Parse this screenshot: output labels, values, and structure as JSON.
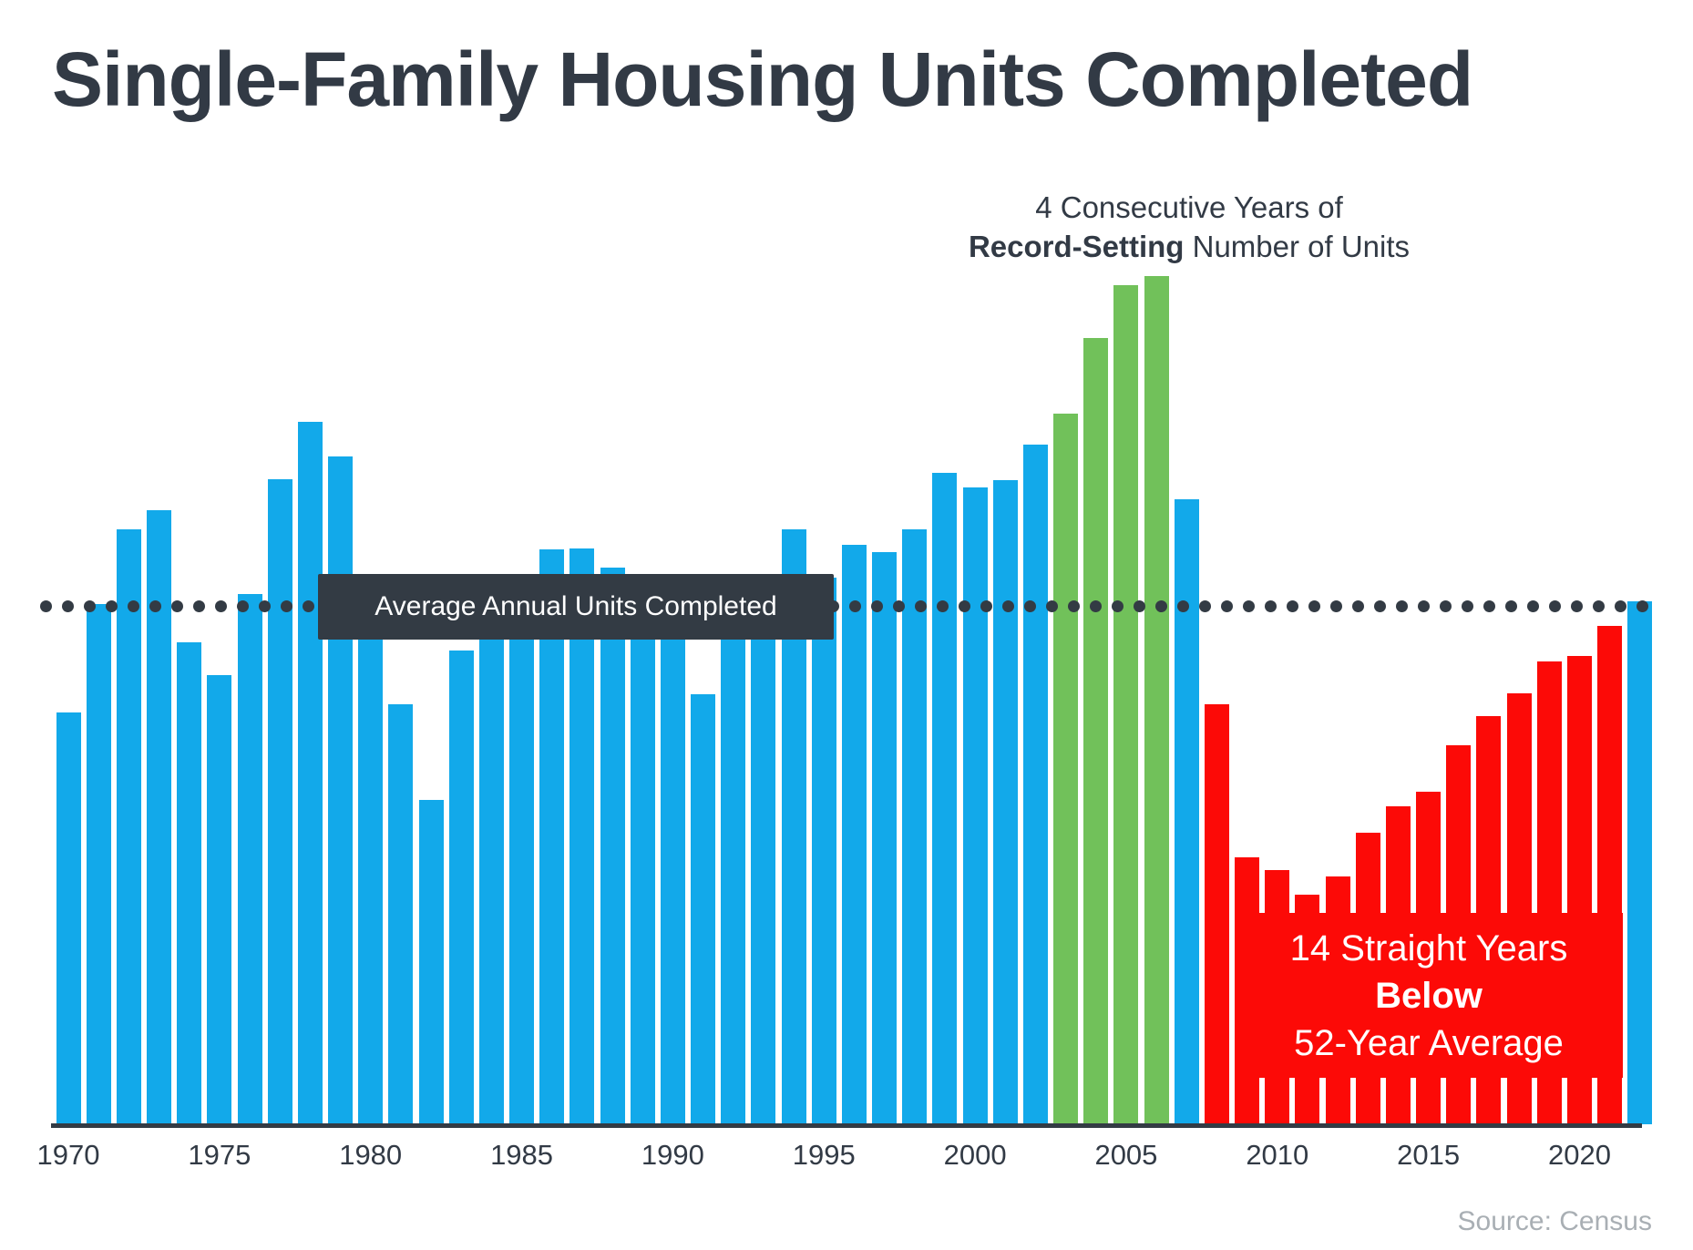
{
  "title": "Single-Family Housing Units Completed",
  "source": "Source: Census",
  "colors": {
    "blue": "#12A9EA",
    "green": "#71C15A",
    "red": "#FC0A07",
    "dark_slate": "#333B44",
    "heading_text": "#323A45",
    "source_text": "#A9AFB4",
    "overlay_text": "#FFFFFF"
  },
  "annotations": {
    "record": {
      "line1": "4 Consecutive Years of",
      "line2_bold": "Record-Setting",
      "line2_rest": " Number of Units"
    },
    "average_label": "Average Annual Units Completed",
    "below_average": {
      "line1": "14 Straight Years",
      "line2_bold": "Below",
      "line3": "52-Year Average"
    }
  },
  "chart_data": {
    "type": "bar",
    "title": "Single-Family Housing Units Completed",
    "unit_note": "estimated thousands of units, no y-axis shown",
    "average_value": 1010,
    "average_line_style": "dotted",
    "grid": false,
    "legend": false,
    "ylim": [
      0,
      1700
    ],
    "x_tick_labels": [
      "1970",
      "1975",
      "1980",
      "1985",
      "1990",
      "1995",
      "2000",
      "2005",
      "2010",
      "2015",
      "2020"
    ],
    "years": [
      1970,
      1971,
      1972,
      1973,
      1974,
      1975,
      1976,
      1977,
      1978,
      1979,
      1980,
      1981,
      1982,
      1983,
      1984,
      1985,
      1986,
      1987,
      1988,
      1989,
      1990,
      1991,
      1992,
      1993,
      1994,
      1995,
      1996,
      1997,
      1998,
      1999,
      2000,
      2001,
      2002,
      2003,
      2004,
      2005,
      2006,
      2007,
      2008,
      2009,
      2010,
      2011,
      2012,
      2013,
      2014,
      2015,
      2016,
      2017,
      2018,
      2019,
      2020,
      2021,
      2022
    ],
    "values": [
      802,
      1014,
      1160,
      1197,
      940,
      875,
      1034,
      1258,
      1369,
      1301,
      957,
      819,
      632,
      924,
      1025,
      1072,
      1120,
      1123,
      1085,
      1026,
      966,
      838,
      964,
      1039,
      1160,
      1066,
      1129,
      1116,
      1160,
      1270,
      1242,
      1256,
      1325,
      1386,
      1532,
      1636,
      1654,
      1218,
      819,
      520,
      496,
      447,
      483,
      569,
      620,
      648,
      738,
      795,
      840,
      903,
      912,
      971,
      1020
    ],
    "bar_colors": [
      "blue",
      "blue",
      "blue",
      "blue",
      "blue",
      "blue",
      "blue",
      "blue",
      "blue",
      "blue",
      "blue",
      "blue",
      "blue",
      "blue",
      "blue",
      "blue",
      "blue",
      "blue",
      "blue",
      "blue",
      "blue",
      "blue",
      "blue",
      "blue",
      "blue",
      "blue",
      "blue",
      "blue",
      "blue",
      "blue",
      "blue",
      "blue",
      "blue",
      "green",
      "green",
      "green",
      "green",
      "blue",
      "red",
      "red",
      "red",
      "red",
      "red",
      "red",
      "red",
      "red",
      "red",
      "red",
      "red",
      "red",
      "red",
      "red",
      "blue"
    ]
  }
}
